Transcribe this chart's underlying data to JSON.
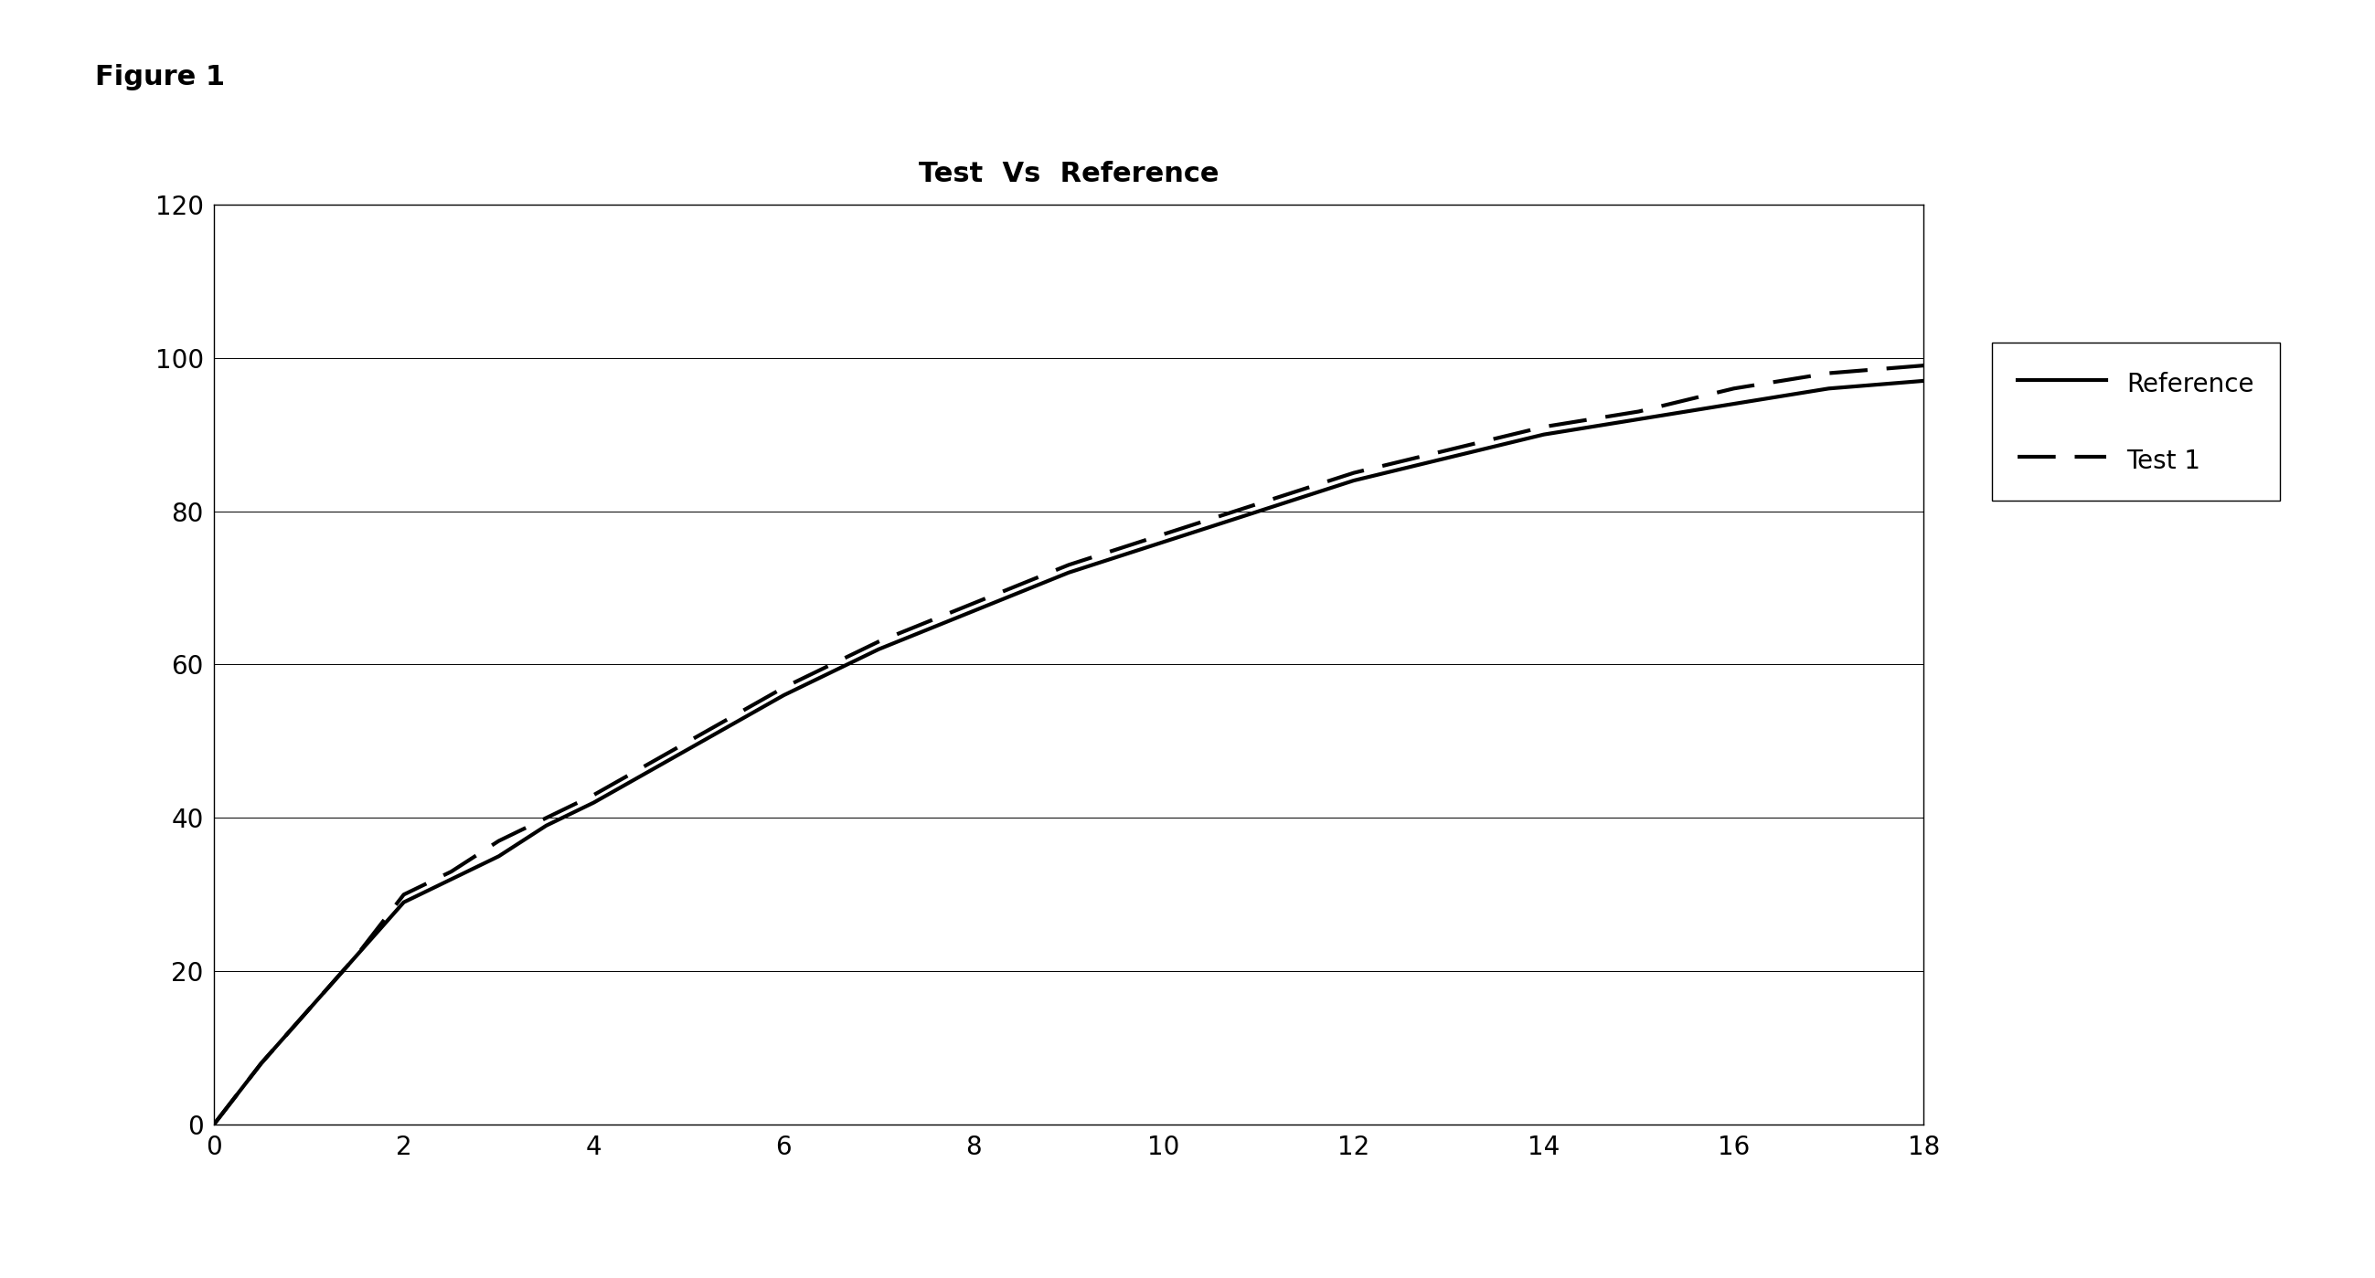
{
  "title": "Test  Vs  Reference",
  "figure_label": "Figure 1",
  "xlim": [
    0,
    18
  ],
  "ylim": [
    0,
    120
  ],
  "xticks": [
    0,
    2,
    4,
    6,
    8,
    10,
    12,
    14,
    16,
    18
  ],
  "yticks": [
    0,
    20,
    40,
    60,
    80,
    100,
    120
  ],
  "reference_x": [
    0,
    0.5,
    1,
    1.5,
    2,
    2.5,
    3,
    3.5,
    4,
    5,
    6,
    7,
    8,
    9,
    10,
    11,
    12,
    13,
    14,
    15,
    16,
    17,
    18
  ],
  "reference_y": [
    0,
    8,
    15,
    22,
    29,
    32,
    35,
    39,
    42,
    49,
    56,
    62,
    67,
    72,
    76,
    80,
    84,
    87,
    90,
    92,
    94,
    96,
    97
  ],
  "test1_x": [
    0,
    0.5,
    1,
    1.5,
    2,
    2.5,
    3,
    3.5,
    4,
    5,
    6,
    7,
    8,
    9,
    10,
    11,
    12,
    13,
    14,
    15,
    16,
    17,
    18
  ],
  "test1_y": [
    0,
    8,
    15,
    22,
    30,
    33,
    37,
    40,
    43,
    50,
    57,
    63,
    68,
    73,
    77,
    81,
    85,
    88,
    91,
    93,
    96,
    98,
    99
  ],
  "legend_labels": [
    "Reference",
    "Test 1"
  ],
  "background_color": "#ffffff",
  "line_color": "#000000",
  "title_fontsize": 22,
  "tick_fontsize": 20,
  "legend_fontsize": 20
}
